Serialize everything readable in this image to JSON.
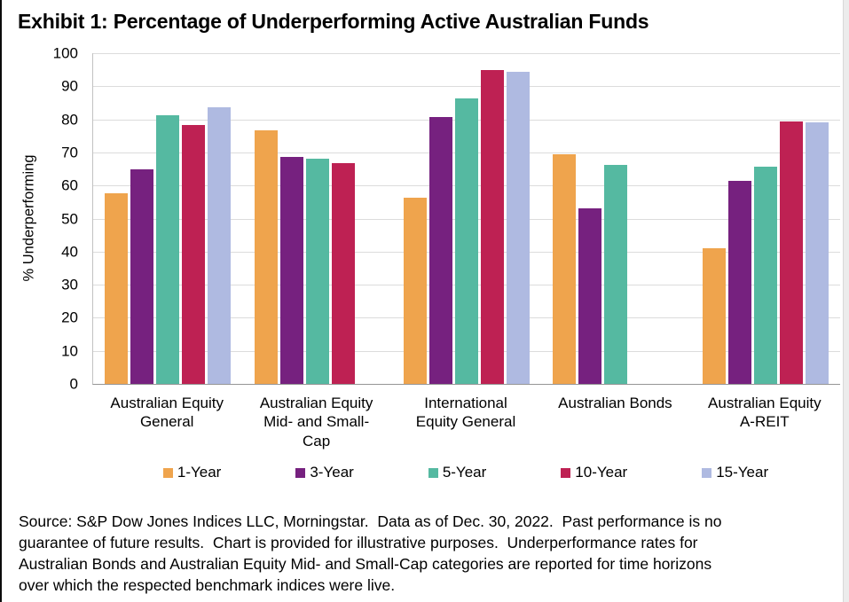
{
  "title": "Exhibit 1: Percentage of Underperforming Active Australian Funds",
  "chart_data": {
    "type": "bar",
    "title": "Exhibit 1: Percentage of Underperforming Active Australian Funds",
    "xlabel": "",
    "ylabel": "% Underperforming",
    "ylim": [
      0,
      100
    ],
    "yticks": [
      0,
      10,
      20,
      30,
      40,
      50,
      60,
      70,
      80,
      90,
      100
    ],
    "grid": true,
    "legend_position": "bottom",
    "categories": [
      "Australian Equity General",
      "Australian Equity Mid- and Small-Cap",
      "International Equity General",
      "Australian Bonds",
      "Australian Equity A-REIT"
    ],
    "series": [
      {
        "name": "1-Year",
        "color": "#EFA44D",
        "values": [
          57.6,
          76.6,
          56.4,
          69.4,
          41.1
        ]
      },
      {
        "name": "3-Year",
        "color": "#76217F",
        "values": [
          65.0,
          68.6,
          80.8,
          53.1,
          61.5
        ]
      },
      {
        "name": "5-Year",
        "color": "#55B9A1",
        "values": [
          81.2,
          68.2,
          86.2,
          66.1,
          65.6
        ]
      },
      {
        "name": "10-Year",
        "color": "#BE2153",
        "values": [
          78.2,
          66.7,
          95.0,
          null,
          79.4
        ]
      },
      {
        "name": "15-Year",
        "color": "#AFBAE1",
        "values": [
          83.6,
          null,
          94.4,
          null,
          79.1
        ]
      }
    ]
  },
  "footer_lines": [
    "Source: S&P Dow Jones Indices LLC, Morningstar.  Data as of Dec. 30, 2022.  Past performance is no",
    "guarantee of future results.  Chart is provided for illustrative purposes.  Underperformance rates for",
    "Australian Bonds and Australian Equity Mid- and Small-Cap categories are reported for time horizons",
    "over which the respected benchmark indices were live."
  ]
}
